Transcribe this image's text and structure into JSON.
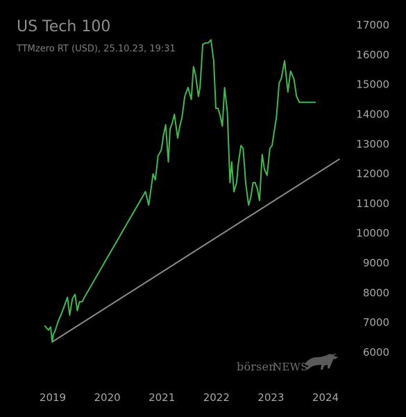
{
  "header": {
    "title": "US Tech 100",
    "subtitle": "TTMzero RT (USD), 25.10.23, 19:31"
  },
  "watermark": {
    "text_part1": "börsen",
    "text_part2": "NEWS",
    "icon": "bull-icon"
  },
  "colors": {
    "background": "#000000",
    "price_line": "#3fb950",
    "trend_line": "#8a8a8a",
    "tick_text": "#a7a7a7"
  },
  "chart_data": {
    "type": "line",
    "title": "US Tech 100",
    "subtitle": "TTMzero RT (USD), 25.10.23, 19:31",
    "xlabel": "",
    "ylabel": "",
    "xlim": [
      2018.75,
      2024.3
    ],
    "ylim": [
      5800,
      17200
    ],
    "y_axis_position": "right",
    "grid": false,
    "legend": "none",
    "y_ticks": [
      6000,
      7000,
      8000,
      9000,
      10000,
      11000,
      12000,
      13000,
      14000,
      15000,
      16000,
      17000
    ],
    "x_ticks": [
      2019,
      2020,
      2021,
      2022,
      2023,
      2024
    ],
    "x_tick_labels": [
      "2019",
      "2020",
      "2021",
      "2022",
      "2023",
      "2024"
    ],
    "series": [
      {
        "values_x": [
          2018.85,
          2018.92,
          2018.96,
          2018.99,
          2019.01,
          2019.04,
          2019.1,
          2019.16,
          2019.21,
          2019.27,
          2019.31,
          2019.36,
          2019.41,
          2019.45,
          2019.49,
          2019.54,
          2019.58,
          2020.7,
          2020.76,
          2020.84,
          2020.88,
          2020.93,
          2020.99,
          2021.03,
          2021.07,
          2021.12,
          2021.15,
          2021.19,
          2021.23,
          2021.29,
          2021.33,
          2021.37,
          2021.42,
          2021.48,
          2021.54,
          2021.58,
          2021.62,
          2021.67,
          2021.7,
          2021.75,
          2021.8,
          2021.85,
          2021.9,
          2021.95,
          2021.99,
          2022.03,
          2022.07,
          2022.11,
          2022.15,
          2022.2,
          2022.25,
          2022.28,
          2022.32,
          2022.37,
          2022.4,
          2022.45,
          2022.49,
          2022.54,
          2022.59,
          2022.63,
          2022.67,
          2022.71,
          2022.75,
          2022.79,
          2022.84,
          2022.88,
          2022.93,
          2022.98,
          2023.02,
          2023.07,
          2023.1,
          2023.15,
          2023.19,
          2023.25,
          2023.31,
          2023.36,
          2023.42,
          2023.47,
          2023.52,
          2023.55,
          2023.59,
          2023.63,
          2023.67,
          2023.7,
          2023.74,
          2023.78,
          2023.82
        ],
        "values_y": [
          6900,
          6750,
          6850,
          6350,
          6600,
          6700,
          7050,
          7300,
          7550,
          7850,
          7250,
          7800,
          7950,
          7400,
          7700,
          7700,
          7850,
          11400,
          10950,
          12000,
          11800,
          12600,
          12800,
          13300,
          13650,
          12400,
          13500,
          13700,
          14000,
          13200,
          13600,
          13900,
          14600,
          14900,
          14500,
          15600,
          15300,
          14600,
          14900,
          16350,
          16400,
          16400,
          16500,
          15800,
          14200,
          14200,
          13950,
          13600,
          14900,
          14100,
          11700,
          12400,
          11400,
          11700,
          12300,
          12950,
          12850,
          11650,
          10950,
          11200,
          11700,
          11700,
          11500,
          11100,
          12650,
          12150,
          11950,
          12850,
          12950,
          13550,
          13900,
          15050,
          15200,
          15800,
          14750,
          15450,
          15200,
          14600,
          14400,
          14400,
          14400,
          14400,
          14400,
          14400,
          14400,
          14400,
          14400
        ]
      },
      {
        "type": "trendline",
        "values_x": [
          2018.99,
          2024.26
        ],
        "values_y": [
          6350,
          12500
        ]
      }
    ]
  }
}
